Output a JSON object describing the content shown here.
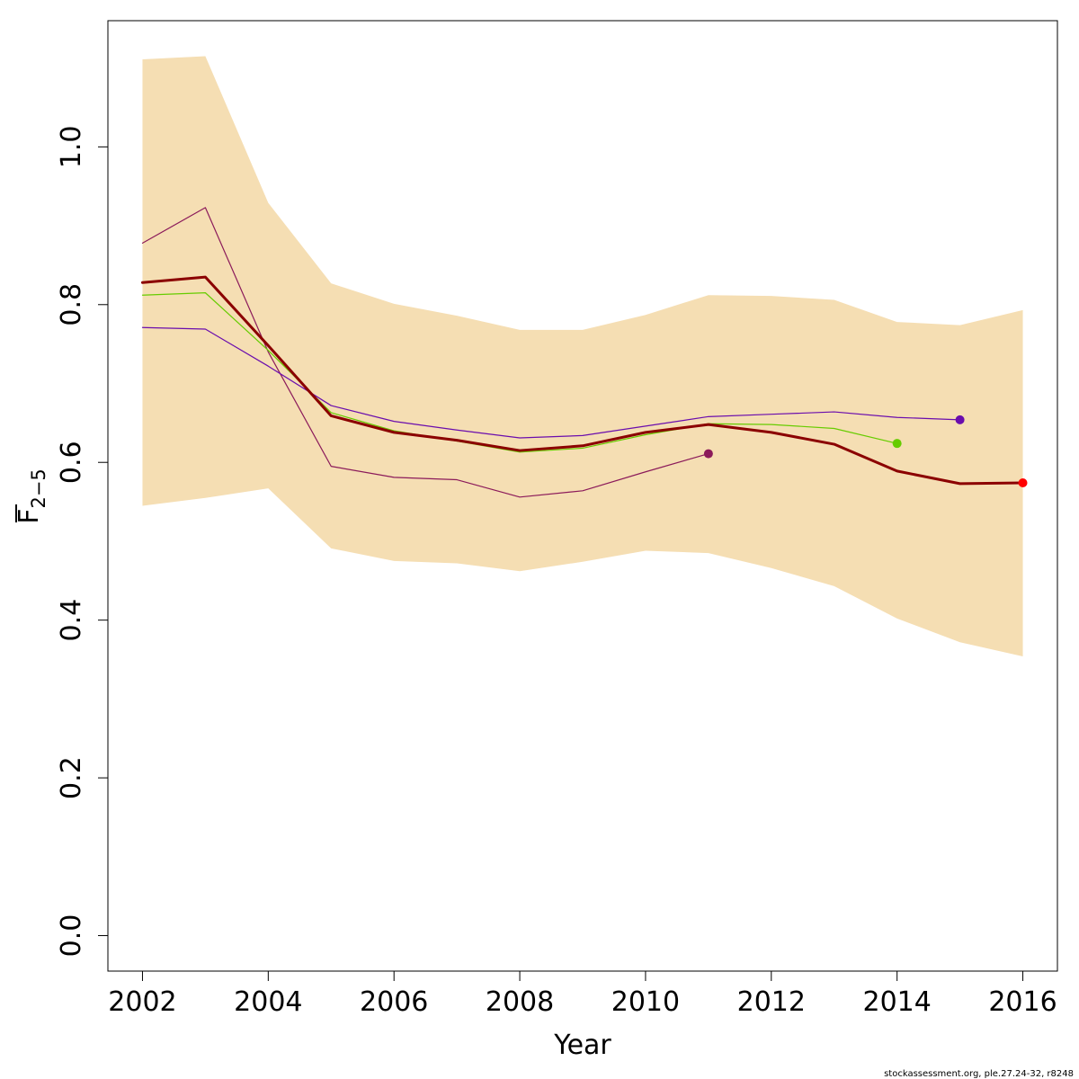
{
  "chart_data": {
    "type": "line",
    "xlabel": "Year",
    "ylabel_main": "F",
    "ylabel_sub": "2−5",
    "xlim": [
      2001.45,
      2016.55
    ],
    "ylim": [
      -0.045,
      1.16
    ],
    "x_ticks": [
      2002,
      2004,
      2006,
      2008,
      2010,
      2012,
      2014,
      2016
    ],
    "x_tick_labels": [
      "2002",
      "2004",
      "2006",
      "2008",
      "2010",
      "2012",
      "2014",
      "2016"
    ],
    "y_ticks": [
      0.0,
      0.2,
      0.4,
      0.6,
      0.8,
      1.0
    ],
    "y_tick_labels": [
      "0.0",
      "0.2",
      "0.4",
      "0.6",
      "0.8",
      "1.0"
    ],
    "grid": false,
    "legend": "none",
    "confidence_band": {
      "color": "#f5deb3",
      "x": [
        2002,
        2003,
        2004,
        2005,
        2006,
        2007,
        2008,
        2009,
        2010,
        2011,
        2012,
        2013,
        2014,
        2015,
        2016
      ],
      "lower": [
        0.545,
        0.555,
        0.567,
        0.491,
        0.475,
        0.472,
        0.462,
        0.474,
        0.488,
        0.485,
        0.466,
        0.443,
        0.402,
        0.372,
        0.354
      ],
      "upper": [
        1.111,
        1.115,
        0.929,
        0.827,
        0.801,
        0.786,
        0.768,
        0.768,
        0.787,
        0.812,
        0.811,
        0.806,
        0.778,
        0.774,
        0.793
      ]
    },
    "series": [
      {
        "color": "#8b1a5a",
        "width": 1.2,
        "x": [
          2002,
          2003,
          2004,
          2005,
          2006,
          2007,
          2008,
          2009,
          2010,
          2011
        ],
        "y": [
          0.878,
          0.923,
          0.74,
          0.595,
          0.581,
          0.578,
          0.556,
          0.564,
          0.588,
          0.611
        ]
      },
      {
        "color": "#66cc00",
        "width": 1.2,
        "x": [
          2002,
          2003,
          2004,
          2005,
          2006,
          2007,
          2008,
          2009,
          2010,
          2011,
          2012,
          2013,
          2014
        ],
        "y": [
          0.812,
          0.815,
          0.742,
          0.663,
          0.64,
          0.627,
          0.613,
          0.618,
          0.635,
          0.649,
          0.648,
          0.643,
          0.624
        ]
      },
      {
        "color": "#6a0dad",
        "width": 1.2,
        "x": [
          2002,
          2003,
          2004,
          2005,
          2006,
          2007,
          2008,
          2009,
          2010,
          2011,
          2012,
          2013,
          2014,
          2015
        ],
        "y": [
          0.771,
          0.769,
          0.722,
          0.672,
          0.652,
          0.641,
          0.631,
          0.634,
          0.646,
          0.658,
          0.661,
          0.664,
          0.657,
          0.654
        ]
      },
      {
        "color": "#8b0000",
        "width": 3,
        "x": [
          2002,
          2003,
          2004,
          2005,
          2006,
          2007,
          2008,
          2009,
          2010,
          2011,
          2012,
          2013,
          2014,
          2015,
          2016
        ],
        "y": [
          0.828,
          0.835,
          0.748,
          0.659,
          0.638,
          0.628,
          0.615,
          0.621,
          0.638,
          0.648,
          0.638,
          0.623,
          0.589,
          0.573,
          0.574
        ]
      }
    ],
    "end_points": [
      {
        "x": 2011,
        "y": 0.611,
        "color": "#8b1a5a"
      },
      {
        "x": 2014,
        "y": 0.624,
        "color": "#66cc00"
      },
      {
        "x": 2015,
        "y": 0.654,
        "color": "#6a0dad"
      },
      {
        "x": 2016,
        "y": 0.574,
        "color": "#ff0000"
      }
    ]
  },
  "footer": {
    "credit": "stockassessment.org, ple.27.24-32, r8248"
  }
}
